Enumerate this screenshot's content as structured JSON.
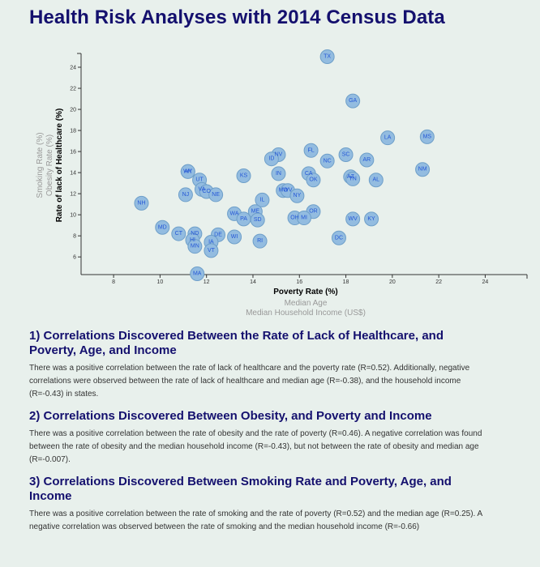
{
  "title": "Health Risk Analyses with 2014 Census Data",
  "chart_data": {
    "type": "scatter",
    "x_axis": {
      "active_label": "Poverty Rate (%)",
      "other_labels": [
        "Median Age",
        "Median Household Income (US$)"
      ],
      "range": [
        6.6,
        25.8
      ],
      "ticks": [
        8,
        10,
        12,
        14,
        16,
        18,
        20,
        22,
        24
      ]
    },
    "y_axis": {
      "active_label": "Rate of lack of Healthcare (%)",
      "other_labels": [
        "Obesity Rate (%)",
        "Smoking Rate (%)"
      ],
      "range": [
        4.4,
        25
      ],
      "ticks": [
        6,
        8,
        10,
        12,
        14,
        16,
        18,
        20,
        22,
        24
      ]
    },
    "points": [
      {
        "abbr": "TX",
        "x": 17.2,
        "y": 25.0
      },
      {
        "abbr": "GA",
        "x": 18.3,
        "y": 20.8
      },
      {
        "abbr": "LA",
        "x": 19.8,
        "y": 17.3
      },
      {
        "abbr": "MS",
        "x": 21.5,
        "y": 17.4
      },
      {
        "abbr": "FL",
        "x": 16.5,
        "y": 16.1
      },
      {
        "abbr": "NV",
        "x": 15.1,
        "y": 15.7
      },
      {
        "abbr": "ID",
        "x": 14.8,
        "y": 15.3
      },
      {
        "abbr": "SC",
        "x": 18.0,
        "y": 15.7
      },
      {
        "abbr": "NC",
        "x": 17.2,
        "y": 15.1
      },
      {
        "abbr": "AR",
        "x": 18.9,
        "y": 15.2
      },
      {
        "abbr": "NM",
        "x": 21.3,
        "y": 14.3
      },
      {
        "abbr": "AK",
        "x": 11.2,
        "y": 14.1
      },
      {
        "abbr": "WY",
        "x": 11.2,
        "y": 14.1
      },
      {
        "abbr": "KS",
        "x": 13.6,
        "y": 13.7
      },
      {
        "abbr": "IN",
        "x": 15.1,
        "y": 13.9
      },
      {
        "abbr": "CA",
        "x": 16.4,
        "y": 13.9
      },
      {
        "abbr": "OK",
        "x": 16.6,
        "y": 13.3
      },
      {
        "abbr": "AZ",
        "x": 18.2,
        "y": 13.6
      },
      {
        "abbr": "TN",
        "x": 18.3,
        "y": 13.4
      },
      {
        "abbr": "AL",
        "x": 19.3,
        "y": 13.3
      },
      {
        "abbr": "UT",
        "x": 11.7,
        "y": 13.3
      },
      {
        "abbr": "VA",
        "x": 11.8,
        "y": 12.4
      },
      {
        "abbr": "CO",
        "x": 12.0,
        "y": 12.2
      },
      {
        "abbr": "NE",
        "x": 12.4,
        "y": 11.9
      },
      {
        "abbr": "NJ",
        "x": 11.1,
        "y": 11.9
      },
      {
        "abbr": "MO",
        "x": 15.3,
        "y": 12.3
      },
      {
        "abbr": "WV",
        "x": 15.5,
        "y": 12.3
      },
      {
        "abbr": "NY",
        "x": 15.9,
        "y": 11.8
      },
      {
        "abbr": "IL",
        "x": 14.4,
        "y": 11.4
      },
      {
        "abbr": "NH",
        "x": 9.2,
        "y": 11.1
      },
      {
        "abbr": "ME",
        "x": 14.1,
        "y": 10.3
      },
      {
        "abbr": "WA",
        "x": 13.2,
        "y": 10.1
      },
      {
        "abbr": "PA",
        "x": 13.6,
        "y": 9.6
      },
      {
        "abbr": "SD",
        "x": 14.2,
        "y": 9.5
      },
      {
        "abbr": "OR",
        "x": 16.6,
        "y": 10.3
      },
      {
        "abbr": "OH",
        "x": 15.8,
        "y": 9.7
      },
      {
        "abbr": "MI",
        "x": 16.2,
        "y": 9.7
      },
      {
        "abbr": "WV",
        "x": 18.3,
        "y": 9.6
      },
      {
        "abbr": "KY",
        "x": 19.1,
        "y": 9.6
      },
      {
        "abbr": "MD",
        "x": 10.1,
        "y": 8.8
      },
      {
        "abbr": "CT",
        "x": 10.8,
        "y": 8.2
      },
      {
        "abbr": "ND",
        "x": 11.5,
        "y": 8.2
      },
      {
        "abbr": "HI",
        "x": 11.4,
        "y": 7.6
      },
      {
        "abbr": "MN",
        "x": 11.5,
        "y": 7.0
      },
      {
        "abbr": "DE",
        "x": 12.5,
        "y": 8.1
      },
      {
        "abbr": "WI",
        "x": 13.2,
        "y": 7.9
      },
      {
        "abbr": "IA",
        "x": 12.2,
        "y": 7.4
      },
      {
        "abbr": "VT",
        "x": 12.2,
        "y": 6.6
      },
      {
        "abbr": "RI",
        "x": 14.3,
        "y": 7.5
      },
      {
        "abbr": "DC",
        "x": 17.7,
        "y": 7.8
      },
      {
        "abbr": "MA",
        "x": 11.6,
        "y": 4.4
      }
    ]
  },
  "sections": [
    {
      "heading": "1) Correlations Discovered Between the Rate of Lack of Healthcare, and Poverty, Age, and Income",
      "body": "There was a positive correlation between the rate of lack of healthcare and the poverty rate (R=0.52). Additionally, negative correlations were observed between the rate of lack of healthcare and median age (R=-0.38), and the household income (R=-0.43) in states."
    },
    {
      "heading": "2) Correlations Discovered Between Obesity, and Poverty and Income",
      "body": "There was a positive correlation between the rate of obesity and the rate of poverty (R=0.46). A negative correlation was found between the rate of obesity and the median household income (R=-0.43), but not between the rate of obesity and median age (R=-0.007)."
    },
    {
      "heading": "3) Correlations Discovered Between Smoking Rate and Poverty, Age, and Income",
      "body": "There was a positive correlation between the rate of smoking and the rate of poverty (R=0.52) and the median age (R=0.25). A negative correlation was observed between the rate of smoking and the median household income (R=-0.66)"
    }
  ]
}
